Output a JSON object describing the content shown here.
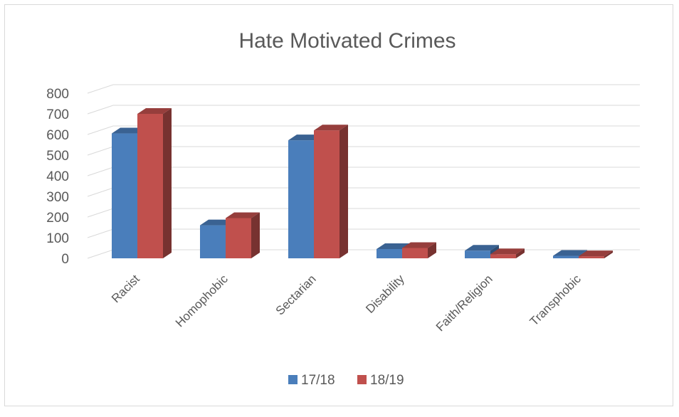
{
  "chart_data": {
    "type": "bar",
    "title": "Hate Motivated Crimes",
    "categories": [
      "Racist",
      "Homophobic",
      "Sectarian",
      "Disability",
      "Faith/Religion",
      "Transphobic"
    ],
    "series": [
      {
        "name": "17/18",
        "values": [
          605,
          160,
          572,
          45,
          37,
          12
        ],
        "color": "#4a7ebb"
      },
      {
        "name": "18/19",
        "values": [
          700,
          195,
          620,
          50,
          20,
          10
        ],
        "color": "#c0504d"
      }
    ],
    "ylim": [
      0,
      800
    ],
    "yticks": [
      0,
      100,
      200,
      300,
      400,
      500,
      600,
      700,
      800
    ],
    "grid": true,
    "legend_position": "bottom",
    "style": "3d-clustered-column"
  }
}
